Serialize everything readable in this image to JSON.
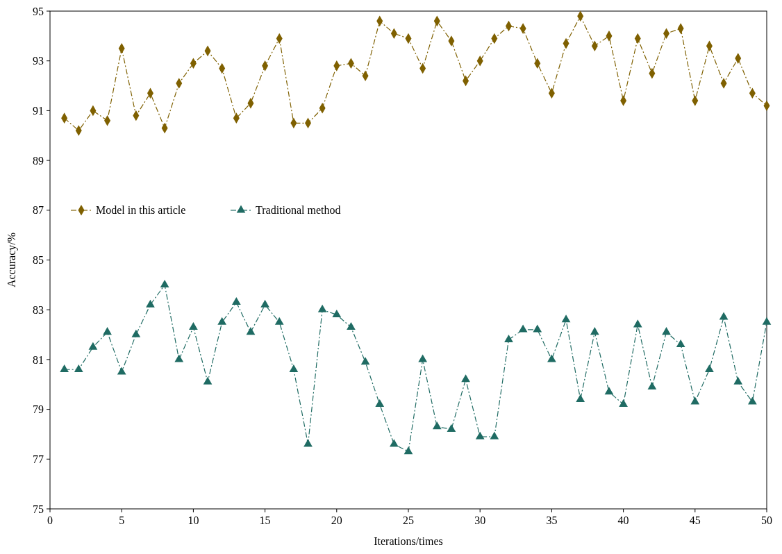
{
  "chart_data": {
    "type": "line",
    "xlabel": "Iterations/times",
    "ylabel": "Accuracy/%",
    "xlim": [
      0,
      50
    ],
    "xticks": [
      0,
      5,
      10,
      15,
      20,
      25,
      30,
      35,
      40,
      45,
      50
    ],
    "ylim": [
      75,
      95
    ],
    "yticks": [
      75,
      77,
      79,
      81,
      83,
      85,
      87,
      89,
      91,
      93,
      95
    ],
    "legend": "left",
    "line_style": "dashed",
    "x": [
      1,
      2,
      3,
      4,
      5,
      6,
      7,
      8,
      9,
      10,
      11,
      12,
      13,
      14,
      15,
      16,
      17,
      18,
      19,
      20,
      21,
      22,
      23,
      24,
      25,
      26,
      27,
      28,
      29,
      30,
      31,
      32,
      33,
      34,
      35,
      36,
      37,
      38,
      39,
      40,
      41,
      42,
      43,
      44,
      45,
      46,
      47,
      48,
      49,
      50
    ],
    "series": [
      {
        "name": "Model in this article",
        "color": "#7f6000",
        "marker": "diamond",
        "values": [
          90.7,
          90.2,
          91.0,
          90.6,
          93.5,
          90.8,
          91.7,
          90.3,
          92.1,
          92.9,
          93.4,
          92.7,
          90.7,
          91.3,
          92.8,
          93.9,
          90.5,
          90.5,
          91.1,
          92.8,
          92.9,
          92.4,
          94.6,
          94.1,
          93.9,
          92.7,
          94.6,
          93.8,
          92.2,
          93.0,
          93.9,
          94.4,
          94.3,
          92.9,
          91.7,
          93.7,
          94.8,
          93.6,
          94.0,
          91.4,
          93.9,
          92.5,
          94.1,
          94.3,
          91.4,
          93.6,
          92.1,
          93.1,
          91.7,
          91.2
        ]
      },
      {
        "name": "Traditional method",
        "color": "#1f6b63",
        "marker": "triangle",
        "values": [
          80.6,
          80.6,
          81.5,
          82.1,
          80.5,
          82.0,
          83.2,
          84.0,
          81.0,
          82.3,
          80.1,
          82.5,
          83.3,
          82.1,
          83.2,
          82.5,
          80.6,
          77.6,
          83.0,
          82.8,
          82.3,
          80.9,
          79.2,
          77.6,
          77.3,
          81.0,
          78.3,
          78.2,
          80.2,
          77.9,
          77.9,
          81.8,
          82.2,
          82.2,
          81.0,
          82.6,
          79.4,
          82.1,
          79.7,
          79.2,
          82.4,
          79.9,
          82.1,
          81.6,
          79.3,
          80.6,
          82.7,
          80.1,
          79.3,
          82.5
        ]
      }
    ]
  }
}
